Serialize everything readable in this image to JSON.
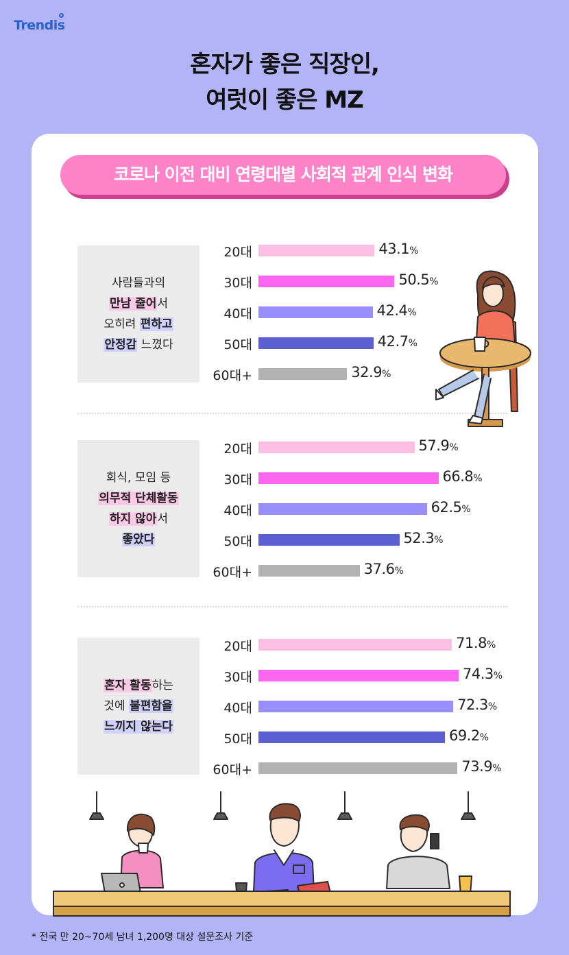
{
  "brand": {
    "logo_text": "Trendis"
  },
  "title": {
    "line1": "혼자가 좋은 직장인,",
    "line2": "여럿이 좋은 MZ"
  },
  "subtitle": "코로나 이전 대비 연령대별 사회적 관계 인식 변화",
  "colors": {
    "background": "#b3b4f7",
    "pill": "#fe83c8",
    "bar_20s": "#fdbfe3",
    "bar_30s": "#fc66f0",
    "bar_40s": "#9a8ffa",
    "bar_50s": "#5b5fd2",
    "bar_60s": "#b2b2b2"
  },
  "questions": [
    {
      "lines": [
        [
          {
            "t": "사람들과의",
            "h": ""
          }
        ],
        [
          {
            "t": "만남 줄어",
            "h": "pink"
          },
          {
            "t": "서",
            "h": ""
          }
        ],
        [
          {
            "t": "오히려 ",
            "h": ""
          },
          {
            "t": "편하고",
            "h": "violet"
          }
        ],
        [
          {
            "t": "안정감",
            "h": "violet"
          },
          {
            "t": " 느꼈다",
            "h": ""
          }
        ]
      ]
    },
    {
      "lines": [
        [
          {
            "t": "회식, 모임 등",
            "h": ""
          }
        ],
        [
          {
            "t": "의무적 단체활동",
            "h": "pink"
          }
        ],
        [
          {
            "t": "하지 않아",
            "h": "pink"
          },
          {
            "t": "서",
            "h": ""
          }
        ],
        [
          {
            "t": "좋았다",
            "h": "violet"
          }
        ]
      ]
    },
    {
      "lines": [
        [
          {
            "t": "혼자 활동",
            "h": "pink"
          },
          {
            "t": "하는",
            "h": ""
          }
        ],
        [
          {
            "t": "것에 ",
            "h": ""
          },
          {
            "t": "불편함을",
            "h": "violet"
          }
        ],
        [
          {
            "t": "느끼지 않는다",
            "h": "violet"
          }
        ]
      ]
    }
  ],
  "chart_data": {
    "type": "bar",
    "orientation": "horizontal",
    "categories": [
      "20대",
      "30대",
      "40대",
      "50대",
      "60대+"
    ],
    "unit": "%",
    "groups": [
      {
        "values": [
          43.1,
          50.5,
          42.4,
          42.7,
          32.9
        ]
      },
      {
        "values": [
          57.9,
          66.8,
          62.5,
          52.3,
          37.6
        ]
      },
      {
        "values": [
          71.8,
          74.3,
          72.3,
          69.2,
          73.9
        ]
      }
    ],
    "legend": "none",
    "grid": false
  },
  "footnote": "*  전국 만 20~70세 남녀 1,200명 대상 설문조사 기준"
}
